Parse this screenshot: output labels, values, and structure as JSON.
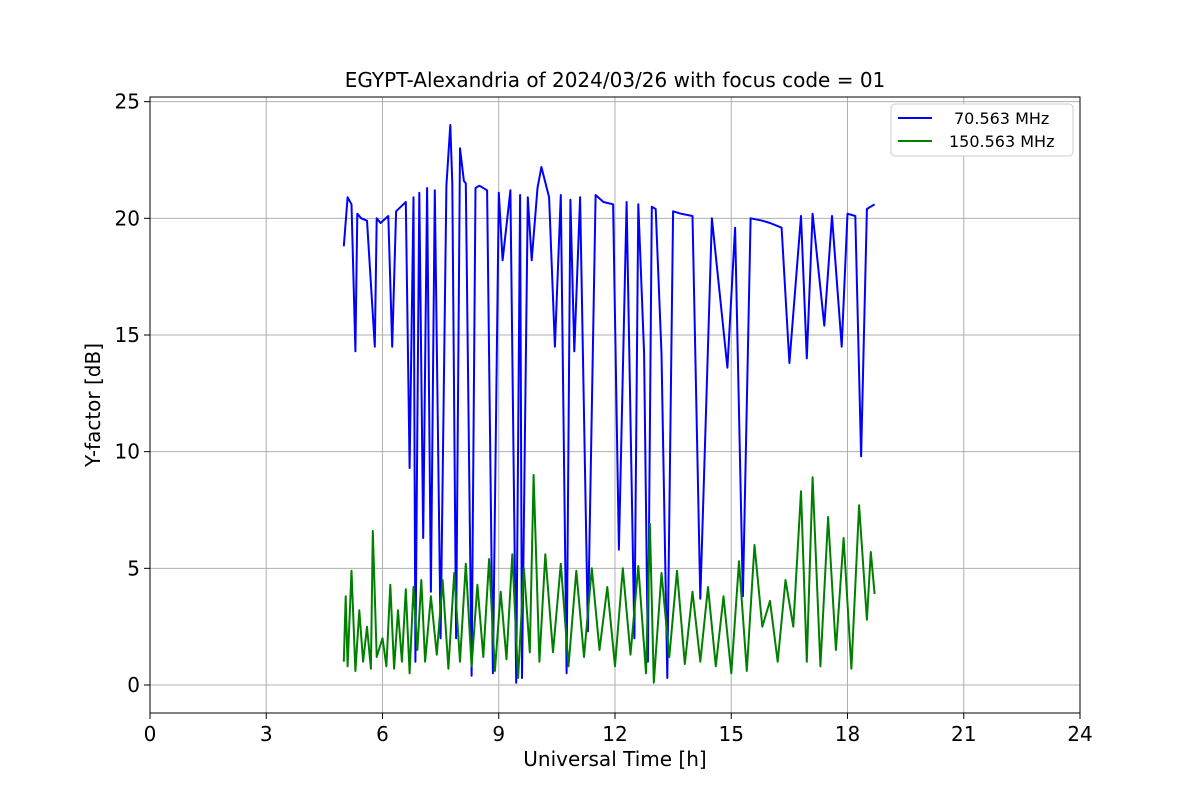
{
  "chart_data": {
    "type": "line",
    "title": "EGYPT-Alexandria of 2024/03/26 with focus code = 01",
    "xlabel": "Universal Time [h]",
    "ylabel": "Y-factor [dB]",
    "xlim": [
      0,
      24
    ],
    "ylim": [
      -1.2,
      25.2
    ],
    "xticks": [
      0,
      3,
      6,
      9,
      12,
      15,
      18,
      21,
      24
    ],
    "yticks": [
      0,
      5,
      10,
      15,
      20,
      25
    ],
    "grid": true,
    "legend_position": "top-right",
    "series": [
      {
        "name": "70.563 MHz",
        "color": "#0000ff",
        "x": [
          5.0,
          5.1,
          5.2,
          5.3,
          5.35,
          5.45,
          5.6,
          5.8,
          5.85,
          5.95,
          6.15,
          6.25,
          6.35,
          6.6,
          6.7,
          6.8,
          6.85,
          6.95,
          7.05,
          7.15,
          7.25,
          7.35,
          7.5,
          7.65,
          7.75,
          7.8,
          7.9,
          8.0,
          8.1,
          8.15,
          8.3,
          8.4,
          8.5,
          8.7,
          8.85,
          9.0,
          9.1,
          9.3,
          9.45,
          9.55,
          9.6,
          9.75,
          9.85,
          10.0,
          10.1,
          10.3,
          10.45,
          10.6,
          10.75,
          10.85,
          10.95,
          11.1,
          11.3,
          11.5,
          11.7,
          11.95,
          12.1,
          12.3,
          12.5,
          12.6,
          12.75,
          12.85,
          12.95,
          13.05,
          13.2,
          13.35,
          13.5,
          13.7,
          14.0,
          14.2,
          14.5,
          14.9,
          15.1,
          15.3,
          15.5,
          15.8,
          16.0,
          16.3,
          16.5,
          16.8,
          16.95,
          17.1,
          17.4,
          17.6,
          17.85,
          18.0,
          18.2,
          18.35,
          18.5,
          18.7
        ],
        "y": [
          18.8,
          20.9,
          20.6,
          14.3,
          20.2,
          20.0,
          19.9,
          14.5,
          20.0,
          19.8,
          20.1,
          14.5,
          20.3,
          20.7,
          9.3,
          20.9,
          1.0,
          21.1,
          6.3,
          21.3,
          4.0,
          21.2,
          2.0,
          21.4,
          24.0,
          21.5,
          2.0,
          23.0,
          21.6,
          21.5,
          0.4,
          21.3,
          21.4,
          21.2,
          0.5,
          21.1,
          18.2,
          21.2,
          0.1,
          21.0,
          0.3,
          20.9,
          18.2,
          21.3,
          22.2,
          20.9,
          14.5,
          21.0,
          0.5,
          20.8,
          14.3,
          20.9,
          2.3,
          21.0,
          20.7,
          20.6,
          5.8,
          20.7,
          2.0,
          20.6,
          14.2,
          1.0,
          20.5,
          20.4,
          14.2,
          0.3,
          20.3,
          20.2,
          20.1,
          3.7,
          20.0,
          13.6,
          19.6,
          3.8,
          20.0,
          19.9,
          19.8,
          19.6,
          13.8,
          20.1,
          14.0,
          20.2,
          15.4,
          20.1,
          14.5,
          20.2,
          20.1,
          9.8,
          20.4,
          20.6
        ]
      },
      {
        "name": "150.563 MHz",
        "color": "#008000",
        "x": [
          5.0,
          5.05,
          5.1,
          5.2,
          5.3,
          5.4,
          5.5,
          5.6,
          5.7,
          5.75,
          5.85,
          6.0,
          6.1,
          6.2,
          6.3,
          6.4,
          6.5,
          6.6,
          6.7,
          6.8,
          6.9,
          7.0,
          7.1,
          7.25,
          7.4,
          7.55,
          7.7,
          7.85,
          8.0,
          8.15,
          8.3,
          8.45,
          8.6,
          8.75,
          8.9,
          9.05,
          9.2,
          9.35,
          9.5,
          9.65,
          9.8,
          9.9,
          10.05,
          10.2,
          10.4,
          10.6,
          10.8,
          11.0,
          11.2,
          11.4,
          11.6,
          11.8,
          12.0,
          12.2,
          12.4,
          12.6,
          12.8,
          12.9,
          13.0,
          13.2,
          13.4,
          13.6,
          13.8,
          14.0,
          14.2,
          14.4,
          14.6,
          14.8,
          15.0,
          15.2,
          15.4,
          15.6,
          15.8,
          16.0,
          16.2,
          16.4,
          16.6,
          16.8,
          16.95,
          17.1,
          17.3,
          17.5,
          17.7,
          17.9,
          18.1,
          18.3,
          18.5,
          18.6,
          18.7
        ],
        "y": [
          1.0,
          3.8,
          0.8,
          4.9,
          0.6,
          3.2,
          1.0,
          2.5,
          0.7,
          6.6,
          1.2,
          2.0,
          0.8,
          4.3,
          0.7,
          3.2,
          1.0,
          4.1,
          0.5,
          4.2,
          1.5,
          4.5,
          1.0,
          3.8,
          1.3,
          4.5,
          0.7,
          4.8,
          1.0,
          5.2,
          0.8,
          4.3,
          1.2,
          5.4,
          0.6,
          4.0,
          1.1,
          5.6,
          0.3,
          5.0,
          1.4,
          9.0,
          1.0,
          5.6,
          1.4,
          5.2,
          0.8,
          4.9,
          1.2,
          5.0,
          1.5,
          4.2,
          0.8,
          5.0,
          1.3,
          5.1,
          0.5,
          6.9,
          0.1,
          4.8,
          1.2,
          4.9,
          0.9,
          4.0,
          1.0,
          4.2,
          0.8,
          3.8,
          0.5,
          5.3,
          0.6,
          6.0,
          2.5,
          3.6,
          1.0,
          4.5,
          2.5,
          8.3,
          1.0,
          8.9,
          0.8,
          7.2,
          1.5,
          6.3,
          0.7,
          7.7,
          2.8,
          5.7,
          3.9
        ]
      }
    ]
  }
}
